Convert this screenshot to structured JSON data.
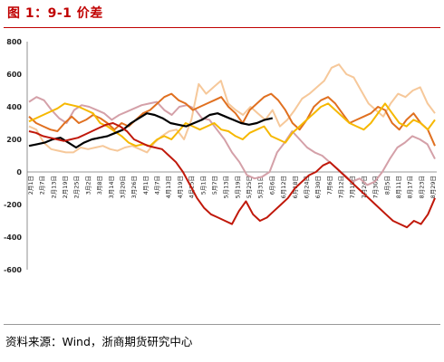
{
  "figure": {
    "title": "图 1：9-1 价差",
    "source": "资料来源：Wind，浙商期货研究中心"
  },
  "chart_data": {
    "type": "line",
    "title": "图 1：9-1 价差",
    "xlabel": "",
    "ylabel": "",
    "ylim": [
      -600,
      800
    ],
    "yticks": [
      -600,
      -400,
      -200,
      0,
      200,
      400,
      600,
      800
    ],
    "grid": false,
    "legend": "none",
    "x_tick_labels": [
      "2月1日",
      "2月7日",
      "2月13日",
      "2月19日",
      "2月25日",
      "3月2日",
      "3月8日",
      "3月14日",
      "3月20日",
      "3月26日",
      "4月1日",
      "4月7日",
      "4月13日",
      "4月19日",
      "4月25日",
      "5月1日",
      "5月7日",
      "5月13日",
      "5月19日",
      "5月25日",
      "5月31日",
      "6月6日",
      "6月12日",
      "6月18日",
      "6月24日",
      "6月30日",
      "7月6日",
      "7月12日",
      "7月18日",
      "7月24日",
      "7月30日",
      "8月5日",
      "8月11日",
      "8月17日",
      "8月23日",
      "8月29日"
    ],
    "series": [
      {
        "color": "#d4a0a8",
        "values": [
          430,
          460,
          440,
          380,
          330,
          300,
          380,
          410,
          400,
          380,
          360,
          320,
          350,
          370,
          390,
          410,
          420,
          430,
          380,
          350,
          400,
          410,
          390,
          330,
          320,
          260,
          200,
          120,
          60,
          -20,
          -40,
          -30,
          0,
          120,
          180,
          250,
          200,
          150,
          120,
          100,
          60,
          20,
          -20,
          -60,
          -40,
          -80,
          -60,
          0,
          80,
          150,
          180,
          220,
          200,
          170,
          80
        ]
      },
      {
        "color": "#f6c89a",
        "values": [
          280,
          260,
          180,
          140,
          130,
          120,
          120,
          150,
          140,
          150,
          160,
          140,
          130,
          150,
          160,
          140,
          120,
          180,
          220,
          250,
          260,
          200,
          320,
          540,
          480,
          520,
          560,
          420,
          380,
          350,
          400,
          360,
          320,
          380,
          280,
          320,
          380,
          450,
          480,
          520,
          560,
          640,
          660,
          600,
          580,
          500,
          420,
          380,
          340,
          420,
          480,
          460,
          500,
          520,
          420,
          360
        ]
      },
      {
        "color": "#e07020",
        "values": [
          340,
          300,
          280,
          260,
          250,
          300,
          340,
          300,
          320,
          350,
          330,
          300,
          260,
          300,
          280,
          320,
          360,
          380,
          420,
          460,
          480,
          440,
          420,
          380,
          400,
          420,
          440,
          460,
          400,
          360,
          300,
          380,
          420,
          460,
          480,
          440,
          380,
          300,
          260,
          320,
          400,
          440,
          460,
          420,
          360,
          300,
          320,
          340,
          360,
          400,
          380,
          300,
          260,
          320,
          360,
          300,
          260,
          160
        ]
      },
      {
        "color": "#f6b800",
        "values": [
          310,
          330,
          350,
          370,
          390,
          420,
          410,
          400,
          380,
          360,
          300,
          280,
          250,
          220,
          180,
          160,
          170,
          160,
          200,
          220,
          200,
          250,
          300,
          280,
          260,
          280,
          300,
          260,
          250,
          220,
          200,
          240,
          260,
          280,
          220,
          200,
          180,
          240,
          280,
          320,
          360,
          400,
          420,
          380,
          340,
          300,
          280,
          260,
          300,
          360,
          420,
          360,
          300,
          280,
          320,
          300,
          260,
          320
        ]
      },
      {
        "color": "#000000",
        "values": [
          160,
          170,
          180,
          200,
          210,
          180,
          150,
          180,
          200,
          210,
          220,
          240,
          260,
          300,
          330,
          360,
          350,
          330,
          300,
          290,
          280,
          300,
          320,
          350,
          360,
          340,
          320,
          300,
          290,
          300,
          320,
          330
        ]
      },
      {
        "color": "#c0180a",
        "values": [
          250,
          240,
          220,
          210,
          200,
          190,
          200,
          210,
          230,
          250,
          270,
          290,
          300,
          280,
          250,
          200,
          180,
          160,
          150,
          140,
          100,
          60,
          0,
          -80,
          -160,
          -220,
          -260,
          -280,
          -300,
          -320,
          -240,
          -180,
          -260,
          -300,
          -280,
          -240,
          -200,
          -160,
          -100,
          -60,
          -20,
          0,
          40,
          60,
          20,
          -20,
          -60,
          -100,
          -140,
          -180,
          -220,
          -260,
          -300,
          -320,
          -340,
          -300,
          -320,
          -260,
          -160
        ]
      }
    ]
  }
}
